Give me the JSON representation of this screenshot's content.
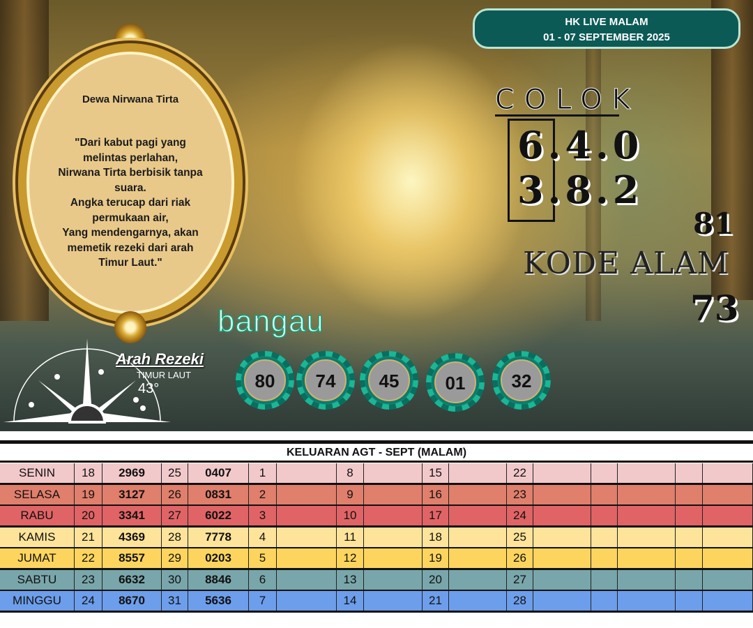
{
  "header": {
    "line1": "HK LIVE MALAM",
    "line2": "01 - 07 SEPTEMBER 2025"
  },
  "oval": {
    "title": "Dewa Nirwana Tirta",
    "poem": "\"Dari kabut pagi yang melintas perlahan,\nNirwana Tirta berbisik tanpa suara.\nAngka terucap dari riak permukaan air,\nYang mendengarnya, akan memetik rezeki dari arah Timur Laut.\""
  },
  "colok": {
    "title": "COLOK",
    "row1": "6.4.0",
    "row2": "3.8.2"
  },
  "kode_alam": {
    "title": "KODE ALAM",
    "numbers": [
      "81",
      "73"
    ]
  },
  "shio": "bangau",
  "numbers": [
    "80",
    "74",
    "45",
    "01",
    "32"
  ],
  "arah": {
    "title": "Arah Rezeki",
    "direction": "TIMUR LAUT",
    "degree": "43°"
  },
  "table": {
    "title": "KELUARAN AGT - SEPT (MALAM)",
    "rows": [
      {
        "day": "SENIN",
        "color": "#f2c9cb",
        "cells": [
          "18",
          "2969",
          "25",
          "0407",
          "1",
          "",
          "8",
          "",
          "15",
          "",
          "22",
          "",
          "",
          "",
          "",
          ""
        ]
      },
      {
        "day": "SELASA",
        "color": "#e07f6c",
        "cells": [
          "19",
          "3127",
          "26",
          "0831",
          "2",
          "",
          "9",
          "",
          "16",
          "",
          "23",
          "",
          "",
          "",
          "",
          ""
        ]
      },
      {
        "day": "RABU",
        "color": "#e06466",
        "cells": [
          "20",
          "3341",
          "27",
          "6022",
          "3",
          "",
          "10",
          "",
          "17",
          "",
          "24",
          "",
          "",
          "",
          "",
          ""
        ]
      },
      {
        "day": "KAMIS",
        "color": "#fde49a",
        "cells": [
          "21",
          "4369",
          "28",
          "7778",
          "4",
          "",
          "11",
          "",
          "18",
          "",
          "25",
          "",
          "",
          "",
          "",
          ""
        ]
      },
      {
        "day": "JUMAT",
        "color": "#fdd55e",
        "cells": [
          "22",
          "8557",
          "29",
          "0203",
          "5",
          "",
          "12",
          "",
          "19",
          "",
          "26",
          "",
          "",
          "",
          "",
          ""
        ]
      },
      {
        "day": "SABTU",
        "color": "#79a6ab",
        "cells": [
          "23",
          "6632",
          "30",
          "8846",
          "6",
          "",
          "13",
          "",
          "20",
          "",
          "27",
          "",
          "",
          "",
          "",
          ""
        ]
      },
      {
        "day": "MINGGU",
        "color": "#6d9eeb",
        "cells": [
          "24",
          "8670",
          "31",
          "5636",
          "7",
          "",
          "14",
          "",
          "21",
          "",
          "28",
          "",
          "",
          "",
          "",
          ""
        ]
      }
    ]
  }
}
